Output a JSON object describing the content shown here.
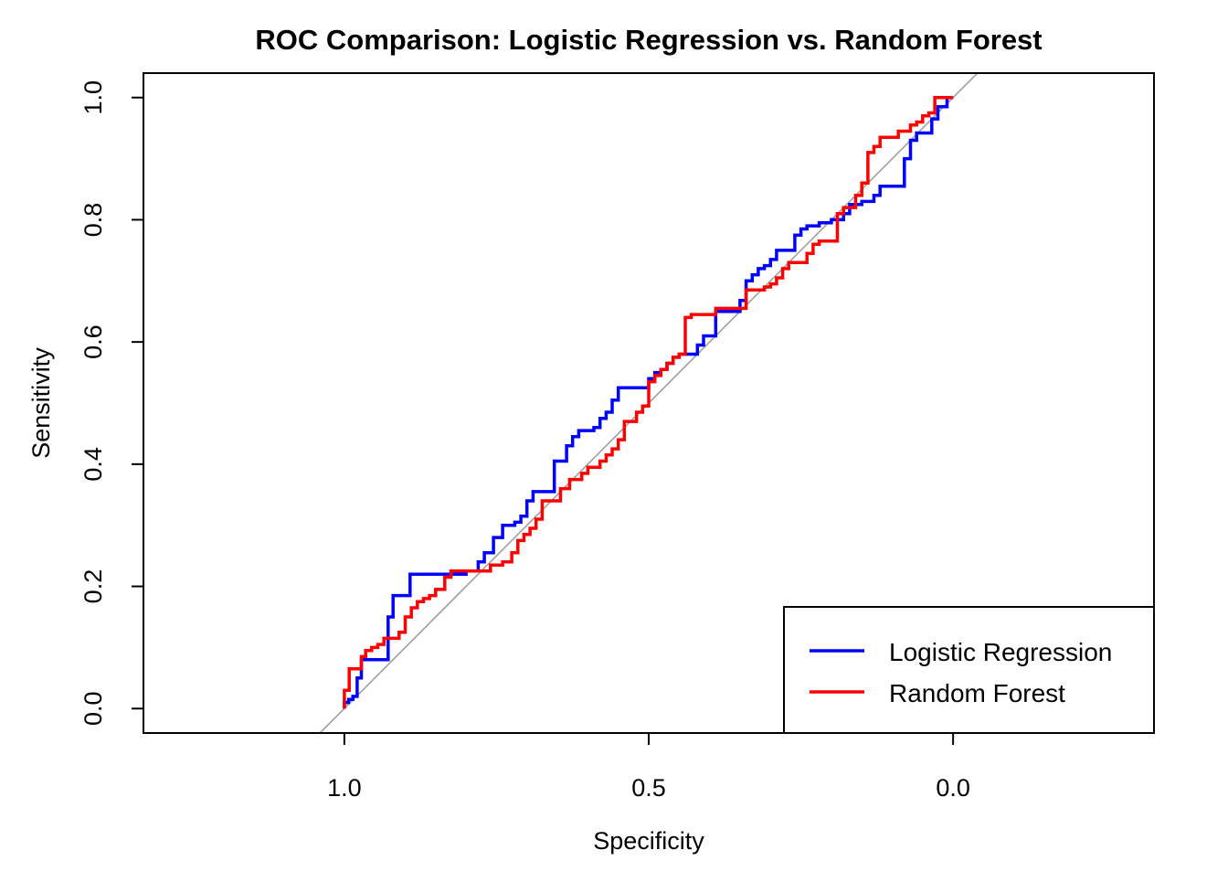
{
  "chart_data": {
    "type": "line",
    "title": "ROC Comparison: Logistic Regression vs. Random Forest",
    "xlabel": "Specificity",
    "ylabel": "Sensitivity",
    "xlim": [
      1.33,
      -0.33
    ],
    "ylim": [
      -0.04,
      1.04
    ],
    "x_axis_reversed": true,
    "grid": false,
    "legend_position": "bottom-right",
    "x_ticks": [
      {
        "value": 1.0,
        "label": "1.0"
      },
      {
        "value": 0.5,
        "label": "0.5"
      },
      {
        "value": 0.0,
        "label": "0.0"
      }
    ],
    "y_ticks": [
      {
        "value": 0.0,
        "label": "0.0"
      },
      {
        "value": 0.2,
        "label": "0.2"
      },
      {
        "value": 0.4,
        "label": "0.4"
      },
      {
        "value": 0.6,
        "label": "0.6"
      },
      {
        "value": 0.8,
        "label": "0.8"
      },
      {
        "value": 1.0,
        "label": "1.0"
      }
    ],
    "reference_line": {
      "color": "#a0a0a0",
      "from": [
        1,
        0
      ],
      "to": [
        0,
        1
      ]
    },
    "series": [
      {
        "name": "Logistic Regression",
        "color": "#0000ff",
        "points": [
          [
            1.0,
            0.0
          ],
          [
            1.0,
            0.01
          ],
          [
            0.993,
            0.01
          ],
          [
            0.993,
            0.015
          ],
          [
            0.986,
            0.015
          ],
          [
            0.986,
            0.02
          ],
          [
            0.979,
            0.02
          ],
          [
            0.979,
            0.05
          ],
          [
            0.972,
            0.05
          ],
          [
            0.972,
            0.08
          ],
          [
            0.928,
            0.08
          ],
          [
            0.928,
            0.15
          ],
          [
            0.92,
            0.15
          ],
          [
            0.92,
            0.185
          ],
          [
            0.892,
            0.185
          ],
          [
            0.892,
            0.22
          ],
          [
            0.8,
            0.22
          ],
          [
            0.8,
            0.225
          ],
          [
            0.78,
            0.225
          ],
          [
            0.78,
            0.24
          ],
          [
            0.77,
            0.24
          ],
          [
            0.77,
            0.255
          ],
          [
            0.755,
            0.255
          ],
          [
            0.755,
            0.28
          ],
          [
            0.74,
            0.28
          ],
          [
            0.74,
            0.3
          ],
          [
            0.72,
            0.3
          ],
          [
            0.72,
            0.305
          ],
          [
            0.71,
            0.305
          ],
          [
            0.71,
            0.315
          ],
          [
            0.7,
            0.315
          ],
          [
            0.7,
            0.34
          ],
          [
            0.69,
            0.34
          ],
          [
            0.69,
            0.355
          ],
          [
            0.655,
            0.355
          ],
          [
            0.655,
            0.405
          ],
          [
            0.635,
            0.405
          ],
          [
            0.635,
            0.43
          ],
          [
            0.625,
            0.43
          ],
          [
            0.625,
            0.445
          ],
          [
            0.615,
            0.445
          ],
          [
            0.615,
            0.455
          ],
          [
            0.59,
            0.455
          ],
          [
            0.59,
            0.46
          ],
          [
            0.58,
            0.46
          ],
          [
            0.58,
            0.475
          ],
          [
            0.57,
            0.475
          ],
          [
            0.57,
            0.485
          ],
          [
            0.56,
            0.485
          ],
          [
            0.56,
            0.505
          ],
          [
            0.55,
            0.505
          ],
          [
            0.55,
            0.525
          ],
          [
            0.52,
            0.525
          ],
          [
            0.52,
            0.525
          ],
          [
            0.5,
            0.525
          ],
          [
            0.5,
            0.54
          ],
          [
            0.49,
            0.54
          ],
          [
            0.49,
            0.55
          ],
          [
            0.48,
            0.55
          ],
          [
            0.48,
            0.555
          ],
          [
            0.47,
            0.555
          ],
          [
            0.47,
            0.565
          ],
          [
            0.46,
            0.565
          ],
          [
            0.46,
            0.575
          ],
          [
            0.45,
            0.575
          ],
          [
            0.45,
            0.58
          ],
          [
            0.42,
            0.58
          ],
          [
            0.42,
            0.595
          ],
          [
            0.41,
            0.595
          ],
          [
            0.41,
            0.61
          ],
          [
            0.39,
            0.61
          ],
          [
            0.39,
            0.65
          ],
          [
            0.35,
            0.65
          ],
          [
            0.35,
            0.668
          ],
          [
            0.34,
            0.668
          ],
          [
            0.34,
            0.7
          ],
          [
            0.33,
            0.7
          ],
          [
            0.33,
            0.71
          ],
          [
            0.32,
            0.71
          ],
          [
            0.32,
            0.72
          ],
          [
            0.31,
            0.72
          ],
          [
            0.31,
            0.725
          ],
          [
            0.3,
            0.725
          ],
          [
            0.3,
            0.735
          ],
          [
            0.29,
            0.735
          ],
          [
            0.29,
            0.75
          ],
          [
            0.26,
            0.75
          ],
          [
            0.26,
            0.775
          ],
          [
            0.25,
            0.775
          ],
          [
            0.25,
            0.785
          ],
          [
            0.24,
            0.785
          ],
          [
            0.24,
            0.79
          ],
          [
            0.22,
            0.79
          ],
          [
            0.22,
            0.795
          ],
          [
            0.2,
            0.795
          ],
          [
            0.2,
            0.8
          ],
          [
            0.18,
            0.8
          ],
          [
            0.18,
            0.81
          ],
          [
            0.17,
            0.81
          ],
          [
            0.17,
            0.825
          ],
          [
            0.15,
            0.825
          ],
          [
            0.15,
            0.83
          ],
          [
            0.13,
            0.83
          ],
          [
            0.13,
            0.84
          ],
          [
            0.12,
            0.84
          ],
          [
            0.12,
            0.855
          ],
          [
            0.08,
            0.855
          ],
          [
            0.08,
            0.9
          ],
          [
            0.07,
            0.9
          ],
          [
            0.07,
            0.93
          ],
          [
            0.06,
            0.93
          ],
          [
            0.06,
            0.942
          ],
          [
            0.035,
            0.942
          ],
          [
            0.035,
            0.965
          ],
          [
            0.025,
            0.965
          ],
          [
            0.025,
            0.985
          ],
          [
            0.01,
            0.985
          ],
          [
            0.01,
            1.0
          ],
          [
            0.0,
            1.0
          ]
        ]
      },
      {
        "name": "Random Forest",
        "color": "#ff0000",
        "points": [
          [
            1.0,
            0.0
          ],
          [
            1.0,
            0.03
          ],
          [
            0.992,
            0.03
          ],
          [
            0.992,
            0.065
          ],
          [
            0.972,
            0.065
          ],
          [
            0.972,
            0.085
          ],
          [
            0.965,
            0.085
          ],
          [
            0.965,
            0.095
          ],
          [
            0.955,
            0.095
          ],
          [
            0.955,
            0.1
          ],
          [
            0.945,
            0.1
          ],
          [
            0.945,
            0.105
          ],
          [
            0.935,
            0.105
          ],
          [
            0.935,
            0.115
          ],
          [
            0.91,
            0.115
          ],
          [
            0.91,
            0.125
          ],
          [
            0.9,
            0.125
          ],
          [
            0.9,
            0.15
          ],
          [
            0.89,
            0.15
          ],
          [
            0.89,
            0.165
          ],
          [
            0.88,
            0.165
          ],
          [
            0.88,
            0.175
          ],
          [
            0.87,
            0.175
          ],
          [
            0.87,
            0.18
          ],
          [
            0.86,
            0.18
          ],
          [
            0.86,
            0.185
          ],
          [
            0.85,
            0.185
          ],
          [
            0.85,
            0.195
          ],
          [
            0.835,
            0.195
          ],
          [
            0.835,
            0.215
          ],
          [
            0.825,
            0.215
          ],
          [
            0.825,
            0.225
          ],
          [
            0.76,
            0.225
          ],
          [
            0.76,
            0.235
          ],
          [
            0.74,
            0.235
          ],
          [
            0.74,
            0.24
          ],
          [
            0.725,
            0.24
          ],
          [
            0.725,
            0.255
          ],
          [
            0.715,
            0.255
          ],
          [
            0.715,
            0.275
          ],
          [
            0.705,
            0.275
          ],
          [
            0.705,
            0.285
          ],
          [
            0.695,
            0.285
          ],
          [
            0.695,
            0.295
          ],
          [
            0.685,
            0.295
          ],
          [
            0.685,
            0.31
          ],
          [
            0.675,
            0.31
          ],
          [
            0.675,
            0.34
          ],
          [
            0.645,
            0.34
          ],
          [
            0.645,
            0.36
          ],
          [
            0.63,
            0.36
          ],
          [
            0.63,
            0.375
          ],
          [
            0.61,
            0.375
          ],
          [
            0.61,
            0.385
          ],
          [
            0.6,
            0.385
          ],
          [
            0.6,
            0.395
          ],
          [
            0.58,
            0.395
          ],
          [
            0.58,
            0.405
          ],
          [
            0.57,
            0.405
          ],
          [
            0.57,
            0.415
          ],
          [
            0.56,
            0.415
          ],
          [
            0.56,
            0.425
          ],
          [
            0.55,
            0.425
          ],
          [
            0.55,
            0.44
          ],
          [
            0.54,
            0.44
          ],
          [
            0.54,
            0.47
          ],
          [
            0.52,
            0.47
          ],
          [
            0.52,
            0.485
          ],
          [
            0.51,
            0.485
          ],
          [
            0.51,
            0.495
          ],
          [
            0.5,
            0.495
          ],
          [
            0.5,
            0.535
          ],
          [
            0.49,
            0.535
          ],
          [
            0.49,
            0.545
          ],
          [
            0.48,
            0.545
          ],
          [
            0.48,
            0.555
          ],
          [
            0.47,
            0.555
          ],
          [
            0.47,
            0.565
          ],
          [
            0.46,
            0.565
          ],
          [
            0.46,
            0.575
          ],
          [
            0.45,
            0.575
          ],
          [
            0.45,
            0.58
          ],
          [
            0.44,
            0.58
          ],
          [
            0.44,
            0.64
          ],
          [
            0.43,
            0.64
          ],
          [
            0.43,
            0.645
          ],
          [
            0.39,
            0.645
          ],
          [
            0.39,
            0.655
          ],
          [
            0.34,
            0.655
          ],
          [
            0.34,
            0.685
          ],
          [
            0.31,
            0.685
          ],
          [
            0.31,
            0.69
          ],
          [
            0.3,
            0.69
          ],
          [
            0.3,
            0.695
          ],
          [
            0.29,
            0.695
          ],
          [
            0.29,
            0.705
          ],
          [
            0.28,
            0.705
          ],
          [
            0.28,
            0.72
          ],
          [
            0.27,
            0.72
          ],
          [
            0.27,
            0.73
          ],
          [
            0.24,
            0.73
          ],
          [
            0.24,
            0.745
          ],
          [
            0.23,
            0.745
          ],
          [
            0.23,
            0.76
          ],
          [
            0.22,
            0.76
          ],
          [
            0.22,
            0.765
          ],
          [
            0.19,
            0.765
          ],
          [
            0.19,
            0.81
          ],
          [
            0.18,
            0.81
          ],
          [
            0.18,
            0.82
          ],
          [
            0.16,
            0.82
          ],
          [
            0.16,
            0.84
          ],
          [
            0.15,
            0.84
          ],
          [
            0.15,
            0.86
          ],
          [
            0.14,
            0.86
          ],
          [
            0.14,
            0.91
          ],
          [
            0.13,
            0.91
          ],
          [
            0.13,
            0.92
          ],
          [
            0.12,
            0.92
          ],
          [
            0.12,
            0.935
          ],
          [
            0.09,
            0.935
          ],
          [
            0.09,
            0.945
          ],
          [
            0.07,
            0.945
          ],
          [
            0.07,
            0.955
          ],
          [
            0.06,
            0.955
          ],
          [
            0.06,
            0.96
          ],
          [
            0.05,
            0.96
          ],
          [
            0.05,
            0.97
          ],
          [
            0.04,
            0.97
          ],
          [
            0.04,
            0.975
          ],
          [
            0.03,
            0.975
          ],
          [
            0.03,
            0.985
          ],
          [
            0.03,
            1.0
          ],
          [
            0.0,
            1.0
          ]
        ]
      }
    ]
  }
}
